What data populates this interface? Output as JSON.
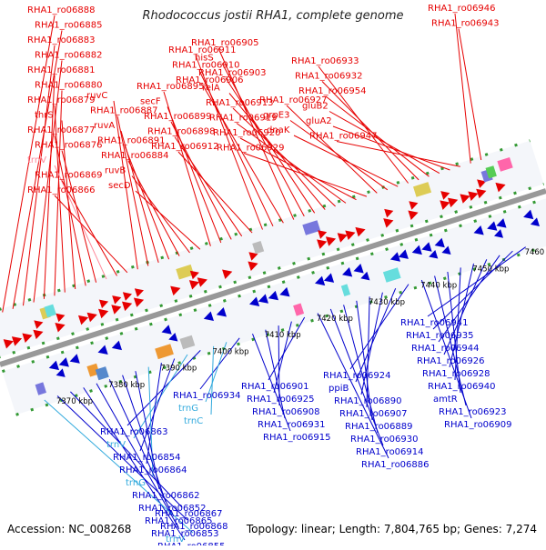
{
  "title": "Rhodococcus jostii RHA1, complete genome",
  "footer": {
    "accession": "Accession: NC_008268",
    "summary": "Topology: linear; Length: 7,804,765 bp; Genes: 7,274"
  },
  "colors": {
    "forward": "#e60000",
    "reverse": "#0000cc",
    "rna": "#33aadd",
    "pseudo": "#ff8899",
    "axis": "#999999",
    "track_dash": "#339933"
  },
  "ticks": [
    "7370 kbp",
    "7380 kbp",
    "7390 kbp",
    "7400 kbp",
    "7410 kbp",
    "7420 kbp",
    "7430 kbp",
    "7440 kbp",
    "7450 kbp",
    "7460 kbp"
  ],
  "top_labels": [
    {
      "text": "RHA1_ro06888",
      "type": "forward"
    },
    {
      "text": "RHA1_ro06885",
      "type": "forward"
    },
    {
      "text": "RHA1_ro06883",
      "type": "forward"
    },
    {
      "text": "RHA1_ro06882",
      "type": "forward"
    },
    {
      "text": "RHA1_ro06881",
      "type": "forward"
    },
    {
      "text": "RHA1_ro06880",
      "type": "forward"
    },
    {
      "text": "RHA1_ro06879",
      "type": "forward"
    },
    {
      "text": "thrS",
      "type": "forward"
    },
    {
      "text": "RHA1_ro06877",
      "type": "forward"
    },
    {
      "text": "RHA1_ro06876",
      "type": "forward"
    },
    {
      "text": "trnV",
      "type": "pseudo"
    },
    {
      "text": "RHA1_ro06869",
      "type": "forward"
    },
    {
      "text": "RHA1_ro06866",
      "type": "forward"
    },
    {
      "text": "ruvC",
      "type": "forward"
    },
    {
      "text": "RHA1_ro06887",
      "type": "forward"
    },
    {
      "text": "ruvA",
      "type": "forward"
    },
    {
      "text": "RHA1_ro06891",
      "type": "forward"
    },
    {
      "text": "RHA1_ro06884",
      "type": "forward"
    },
    {
      "text": "ruvB",
      "type": "forward"
    },
    {
      "text": "secD",
      "type": "forward"
    },
    {
      "text": "RHA1_ro06895",
      "type": "forward"
    },
    {
      "text": "secF",
      "type": "forward"
    },
    {
      "text": "RHA1_ro06899",
      "type": "forward"
    },
    {
      "text": "RHA1_ro06898",
      "type": "forward"
    },
    {
      "text": "RHA1_ro06912",
      "type": "forward"
    },
    {
      "text": "RHA1_ro06911",
      "type": "forward"
    },
    {
      "text": "RHA1_ro06910",
      "type": "forward"
    },
    {
      "text": "RHA1_ro06906",
      "type": "forward"
    },
    {
      "text": "RHA1_ro06905",
      "type": "forward"
    },
    {
      "text": "hisS",
      "type": "forward"
    },
    {
      "text": "RHA1_ro06903",
      "type": "forward"
    },
    {
      "text": "relA",
      "type": "forward"
    },
    {
      "text": "RHA1_ro06913",
      "type": "forward"
    },
    {
      "text": "RHA1_ro06919",
      "type": "forward"
    },
    {
      "text": "RHA1_ro06920",
      "type": "forward"
    },
    {
      "text": "RHA1_ro06929",
      "type": "forward"
    },
    {
      "text": "RHA1_ro06927",
      "type": "forward"
    },
    {
      "text": "grpE3",
      "type": "forward"
    },
    {
      "text": "dnaK",
      "type": "forward"
    },
    {
      "text": "RHA1_ro06933",
      "type": "forward"
    },
    {
      "text": "RHA1_ro06932",
      "type": "forward"
    },
    {
      "text": "RHA1_ro06954",
      "type": "forward"
    },
    {
      "text": "gluB2",
      "type": "forward"
    },
    {
      "text": "gluA2",
      "type": "forward"
    },
    {
      "text": "RHA1_ro06947",
      "type": "forward"
    },
    {
      "text": "RHA1_ro06946",
      "type": "forward"
    },
    {
      "text": "RHA1_ro06943",
      "type": "forward"
    }
  ],
  "bottom_labels": [
    {
      "text": "RHA1_ro06941",
      "type": "reverse"
    },
    {
      "text": "RHA1_ro06935",
      "type": "reverse"
    },
    {
      "text": "RHA1_ro06944",
      "type": "reverse"
    },
    {
      "text": "RHA1_ro06926",
      "type": "reverse"
    },
    {
      "text": "RHA1_ro06928",
      "type": "reverse"
    },
    {
      "text": "RHA1_ro06940",
      "type": "reverse"
    },
    {
      "text": "amtR",
      "type": "reverse"
    },
    {
      "text": "RHA1_ro06923",
      "type": "reverse"
    },
    {
      "text": "RHA1_ro06909",
      "type": "reverse"
    },
    {
      "text": "RHA1_ro06924",
      "type": "reverse"
    },
    {
      "text": "ppiB",
      "type": "reverse"
    },
    {
      "text": "RHA1_ro06890",
      "type": "reverse"
    },
    {
      "text": "RHA1_ro06907",
      "type": "reverse"
    },
    {
      "text": "RHA1_ro06889",
      "type": "reverse"
    },
    {
      "text": "RHA1_ro06930",
      "type": "reverse"
    },
    {
      "text": "RHA1_ro06914",
      "type": "reverse"
    },
    {
      "text": "RHA1_ro06886",
      "type": "reverse"
    },
    {
      "text": "RHA1_ro06901",
      "type": "reverse"
    },
    {
      "text": "RHA1_ro06925",
      "type": "reverse"
    },
    {
      "text": "RHA1_ro06908",
      "type": "reverse"
    },
    {
      "text": "RHA1_ro06931",
      "type": "reverse"
    },
    {
      "text": "RHA1_ro06915",
      "type": "reverse"
    },
    {
      "text": "RHA1_ro06934",
      "type": "reverse"
    },
    {
      "text": "trnG",
      "type": "rna"
    },
    {
      "text": "trnC",
      "type": "rna"
    },
    {
      "text": "RHA1_ro06863",
      "type": "reverse"
    },
    {
      "text": "trnV",
      "type": "rna"
    },
    {
      "text": "RHA1_ro06854",
      "type": "reverse"
    },
    {
      "text": "RHA1_ro06864",
      "type": "reverse"
    },
    {
      "text": "trnG",
      "type": "rna"
    },
    {
      "text": "RHA1_ro06862",
      "type": "reverse"
    },
    {
      "text": "RHA1_ro06852",
      "type": "reverse"
    },
    {
      "text": "RHA1_ro06865",
      "type": "reverse"
    },
    {
      "text": "RHA1_ro06853",
      "type": "reverse"
    },
    {
      "text": "RHA1_ro06855",
      "type": "reverse"
    },
    {
      "text": "RHA1_ro06867",
      "type": "reverse"
    },
    {
      "text": "RHA1_ro06868",
      "type": "reverse"
    },
    {
      "text": "trnV",
      "type": "rna"
    }
  ]
}
